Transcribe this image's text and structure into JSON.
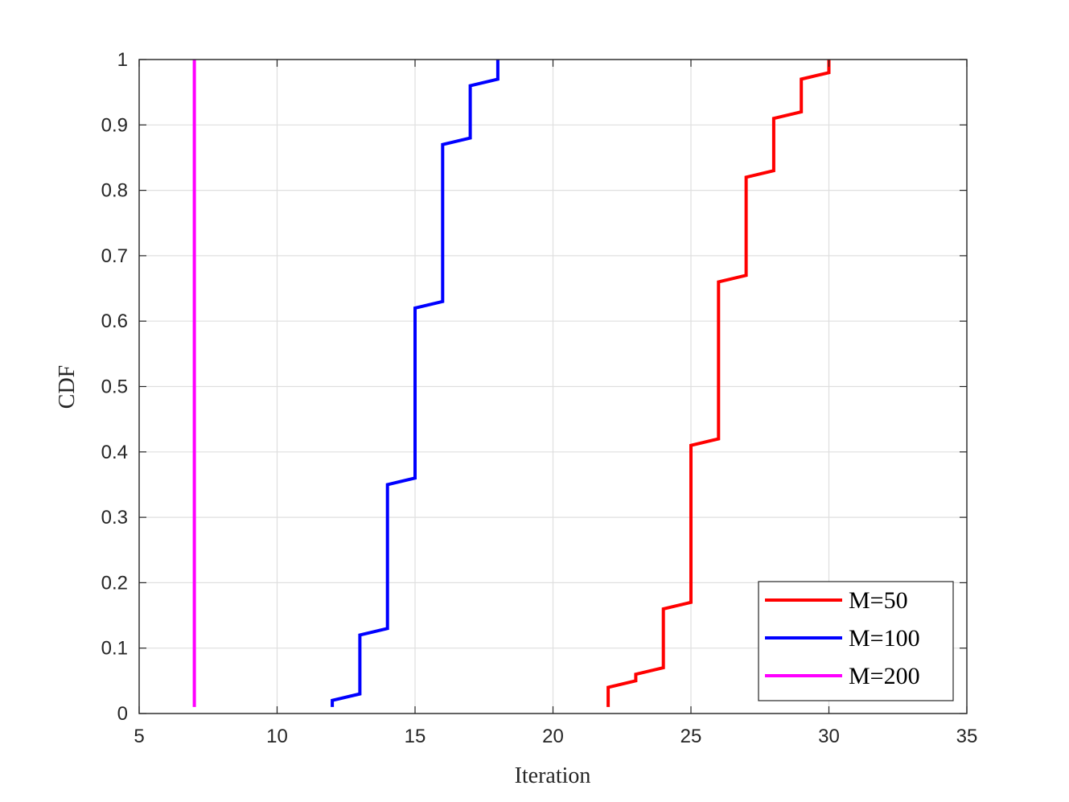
{
  "chart_data": {
    "type": "line",
    "xlabel": "Iteration",
    "ylabel": "CDF",
    "xlim": [
      5,
      35
    ],
    "ylim": [
      0,
      1
    ],
    "xticks": [
      5,
      10,
      15,
      20,
      25,
      30,
      35
    ],
    "yticks": [
      0,
      0.1,
      0.2,
      0.3,
      0.4,
      0.5,
      0.6,
      0.7,
      0.8,
      0.9,
      1
    ],
    "xtick_labels": [
      "5",
      "10",
      "15",
      "20",
      "25",
      "30",
      "35"
    ],
    "ytick_labels": [
      "0",
      "0.1",
      "0.2",
      "0.3",
      "0.4",
      "0.5",
      "0.6",
      "0.7",
      "0.8",
      "0.9",
      "1"
    ],
    "grid": true,
    "legend_position": "bottom-right",
    "series": [
      {
        "name": "M=50",
        "color": "#ff0000",
        "x": [
          22,
          22,
          23,
          23,
          24,
          24,
          25,
          25,
          26,
          26,
          27,
          27,
          28,
          28,
          29,
          29,
          30,
          30
        ],
        "y": [
          0.01,
          0.04,
          0.05,
          0.06,
          0.07,
          0.16,
          0.17,
          0.41,
          0.42,
          0.66,
          0.67,
          0.82,
          0.83,
          0.91,
          0.92,
          0.97,
          0.98,
          1.0
        ]
      },
      {
        "name": "M=100",
        "color": "#0000ff",
        "x": [
          12,
          12,
          13,
          13,
          14,
          14,
          15,
          15,
          16,
          16,
          17,
          17,
          18,
          18
        ],
        "y": [
          0.01,
          0.02,
          0.03,
          0.12,
          0.13,
          0.35,
          0.36,
          0.62,
          0.63,
          0.87,
          0.88,
          0.96,
          0.97,
          1.0
        ]
      },
      {
        "name": "M=200",
        "color": "#ff00ff",
        "x": [
          7,
          7
        ],
        "y": [
          0.01,
          1.0
        ]
      }
    ]
  }
}
